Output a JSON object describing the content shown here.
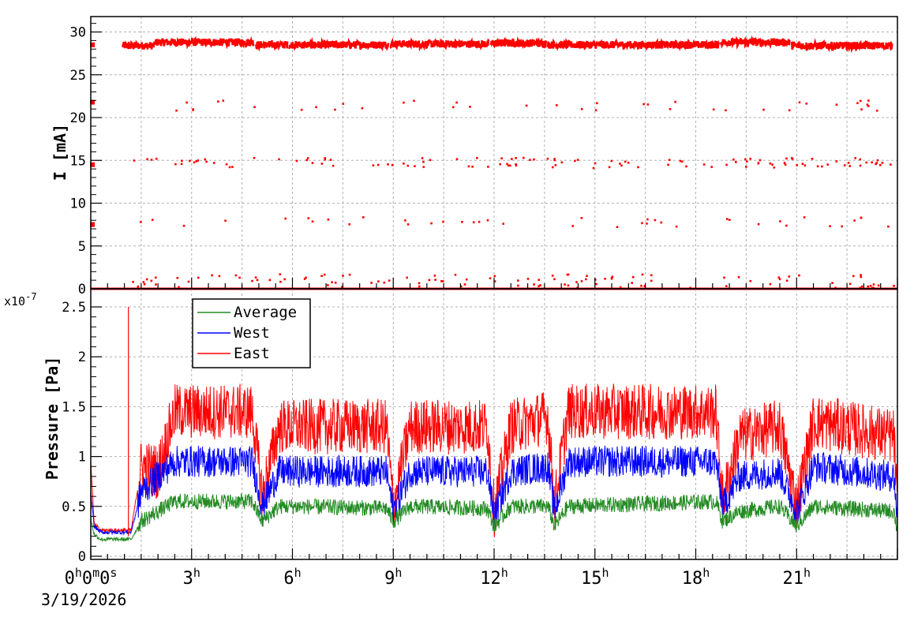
{
  "chart_data": [
    {
      "type": "scatter",
      "ylabel": "I [mA]",
      "ylim": [
        0,
        30
      ],
      "y_ticks": [
        "0",
        "5",
        "10",
        "15",
        "20",
        "25",
        "30"
      ],
      "grid": true,
      "x_unit": "hours since 0h0m0s 3/19/2026",
      "xlim": [
        0,
        24
      ],
      "series": [
        {
          "color": "#ff0000",
          "segments": [
            {
              "x_start": 0.95,
              "x_end": 1.9,
              "y": 28.4
            },
            {
              "x_start": 1.9,
              "x_end": 4.85,
              "y": 28.8
            },
            {
              "x_start": 4.9,
              "x_end": 5.85,
              "y": 28.5
            },
            {
              "x_start": 5.9,
              "x_end": 8.85,
              "y": 28.5
            },
            {
              "x_start": 8.9,
              "x_end": 11.85,
              "y": 28.6
            },
            {
              "x_start": 11.9,
              "x_end": 13.55,
              "y": 28.7
            },
            {
              "x_start": 13.6,
              "x_end": 18.7,
              "y": 28.5
            },
            {
              "x_start": 18.75,
              "x_end": 20.8,
              "y": 28.8
            },
            {
              "x_start": 20.85,
              "x_end": 23.85,
              "y": 28.4
            }
          ],
          "baseline": 0,
          "scattered_levels": [
            21.4,
            14.7,
            7.8,
            0.9
          ]
        }
      ]
    },
    {
      "type": "line",
      "ylabel": "Pressure [Pa]",
      "y_multiplier": "x10",
      "y_exponent": "-7",
      "ylim": [
        0,
        2.6
      ],
      "y_ticks": [
        "0",
        "0.5",
        "1",
        "1.5",
        "2",
        "2.5"
      ],
      "grid": true,
      "xlim": [
        0,
        24
      ],
      "x_tick_labels": [
        "0h0m0s",
        "3h",
        "6h",
        "9h",
        "12h",
        "15h",
        "18h",
        "21h"
      ],
      "date_label": "3/19/2026",
      "legend_position": "top-left",
      "series": [
        {
          "name": "Average",
          "color": "#228B22",
          "x": [
            0,
            0.1,
            0.3,
            1.2,
            1.5,
            2.0,
            2.5,
            4.8,
            5.1,
            5.6,
            6.0,
            8.8,
            9.0,
            9.5,
            11.8,
            12.0,
            12.5,
            13.6,
            13.8,
            14.2,
            18.6,
            18.8,
            19.3,
            20.5,
            21.0,
            21.5,
            23.9,
            24.0
          ],
          "y": [
            0.38,
            0.22,
            0.17,
            0.17,
            0.35,
            0.45,
            0.55,
            0.55,
            0.35,
            0.5,
            0.5,
            0.48,
            0.35,
            0.5,
            0.48,
            0.3,
            0.5,
            0.5,
            0.3,
            0.5,
            0.55,
            0.35,
            0.45,
            0.5,
            0.3,
            0.5,
            0.45,
            0.25
          ]
        },
        {
          "name": "West",
          "color": "#0000ff",
          "x": [
            0,
            0.1,
            0.3,
            1.2,
            1.5,
            2.0,
            2.5,
            4.8,
            5.1,
            5.6,
            6.0,
            8.8,
            9.0,
            9.5,
            11.8,
            12.0,
            12.5,
            13.6,
            13.8,
            14.2,
            18.6,
            18.8,
            19.3,
            20.5,
            21.0,
            21.5,
            23.9,
            24.0
          ],
          "y": [
            0.65,
            0.3,
            0.24,
            0.24,
            0.65,
            0.8,
            0.95,
            0.95,
            0.5,
            0.85,
            0.85,
            0.85,
            0.45,
            0.85,
            0.85,
            0.4,
            0.85,
            0.9,
            0.45,
            0.95,
            0.95,
            0.5,
            0.8,
            0.85,
            0.45,
            0.9,
            0.8,
            0.35
          ]
        },
        {
          "name": "East",
          "color": "#ff0000",
          "x": [
            0,
            0.1,
            0.3,
            1.2,
            1.5,
            2.0,
            2.5,
            4.8,
            5.1,
            5.6,
            6.0,
            8.8,
            9.0,
            9.5,
            11.8,
            12.0,
            12.5,
            13.6,
            13.8,
            14.2,
            18.6,
            18.8,
            19.3,
            20.5,
            21.0,
            21.5,
            23.9,
            24.0
          ],
          "y": [
            0.97,
            0.32,
            0.26,
            0.26,
            0.9,
            0.85,
            1.45,
            1.45,
            0.6,
            1.3,
            1.3,
            1.3,
            0.5,
            1.3,
            1.3,
            0.45,
            1.3,
            1.4,
            0.5,
            1.45,
            1.45,
            0.55,
            1.2,
            1.3,
            0.5,
            1.35,
            1.2,
            0.4
          ]
        }
      ]
    }
  ]
}
